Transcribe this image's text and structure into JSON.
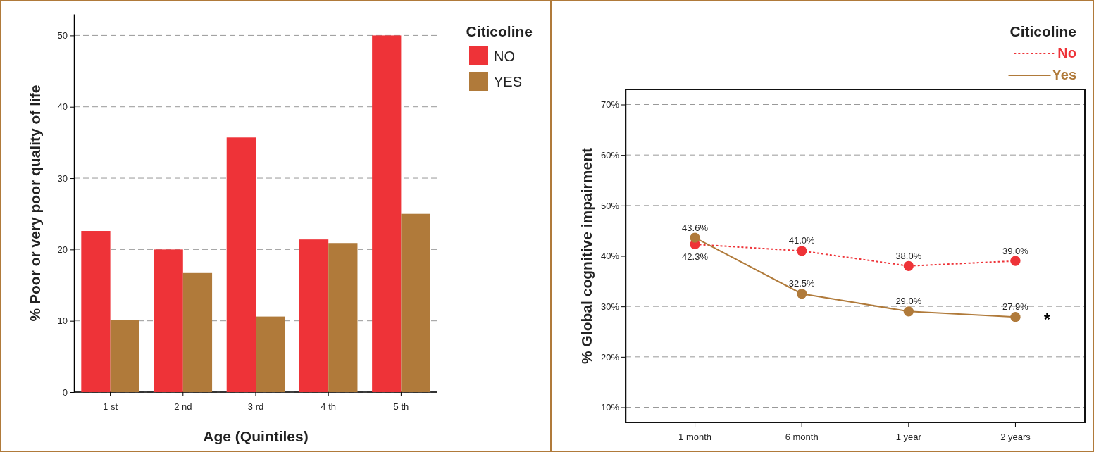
{
  "chart_data": [
    {
      "type": "bar",
      "xlabel": "Age (Quintiles)",
      "ylabel": "% Poor or very poor quality of life",
      "legend_title": "Citicoline",
      "categories": [
        "1 st",
        "2 nd",
        "3 rd",
        "4 th",
        "5 th"
      ],
      "series": [
        {
          "name": "NO",
          "color": "#ee3338",
          "values": [
            22.6,
            20.0,
            35.7,
            21.4,
            50.0
          ]
        },
        {
          "name": "YES",
          "color": "#b07a3a",
          "values": [
            10.1,
            16.7,
            10.6,
            20.9,
            25.0
          ]
        }
      ],
      "ylim": [
        0,
        53
      ],
      "yticks": [
        0,
        10,
        20,
        30,
        40,
        50
      ],
      "grid": "y",
      "legend": "top right"
    },
    {
      "type": "line",
      "ylabel": "% Global cognitive impairment",
      "legend_title": "Citicoline",
      "categories": [
        "1 month",
        "6 month",
        "1 year",
        "2 years"
      ],
      "series": [
        {
          "name": "No",
          "color": "#ee3338",
          "line_style": "dotted",
          "values": [
            42.3,
            41.0,
            38.0,
            39.0
          ],
          "value_labels": [
            "42.3%",
            "41.0%",
            "38.0%",
            "39.0%"
          ]
        },
        {
          "name": "Yes",
          "color": "#b07a3a",
          "line_style": "solid",
          "values": [
            43.6,
            32.5,
            29.0,
            27.9
          ],
          "value_labels": [
            "43.6%",
            "32.5%",
            "29.0%",
            "27.9%"
          ]
        }
      ],
      "ylim": [
        7,
        73
      ],
      "yticks": [
        {
          "value": 10,
          "label": "10%"
        },
        {
          "value": 20,
          "label": "20%"
        },
        {
          "value": 30,
          "label": "30%"
        },
        {
          "value": 40,
          "label": "40%"
        },
        {
          "value": 50,
          "label": "50%"
        },
        {
          "value": 60,
          "label": "60%"
        },
        {
          "value": 70,
          "label": "70%"
        }
      ],
      "grid": "y",
      "legend": "top right",
      "marker": "circle",
      "annotations": [
        {
          "text": "*",
          "x": "2 years",
          "y": 27.9
        }
      ]
    }
  ]
}
